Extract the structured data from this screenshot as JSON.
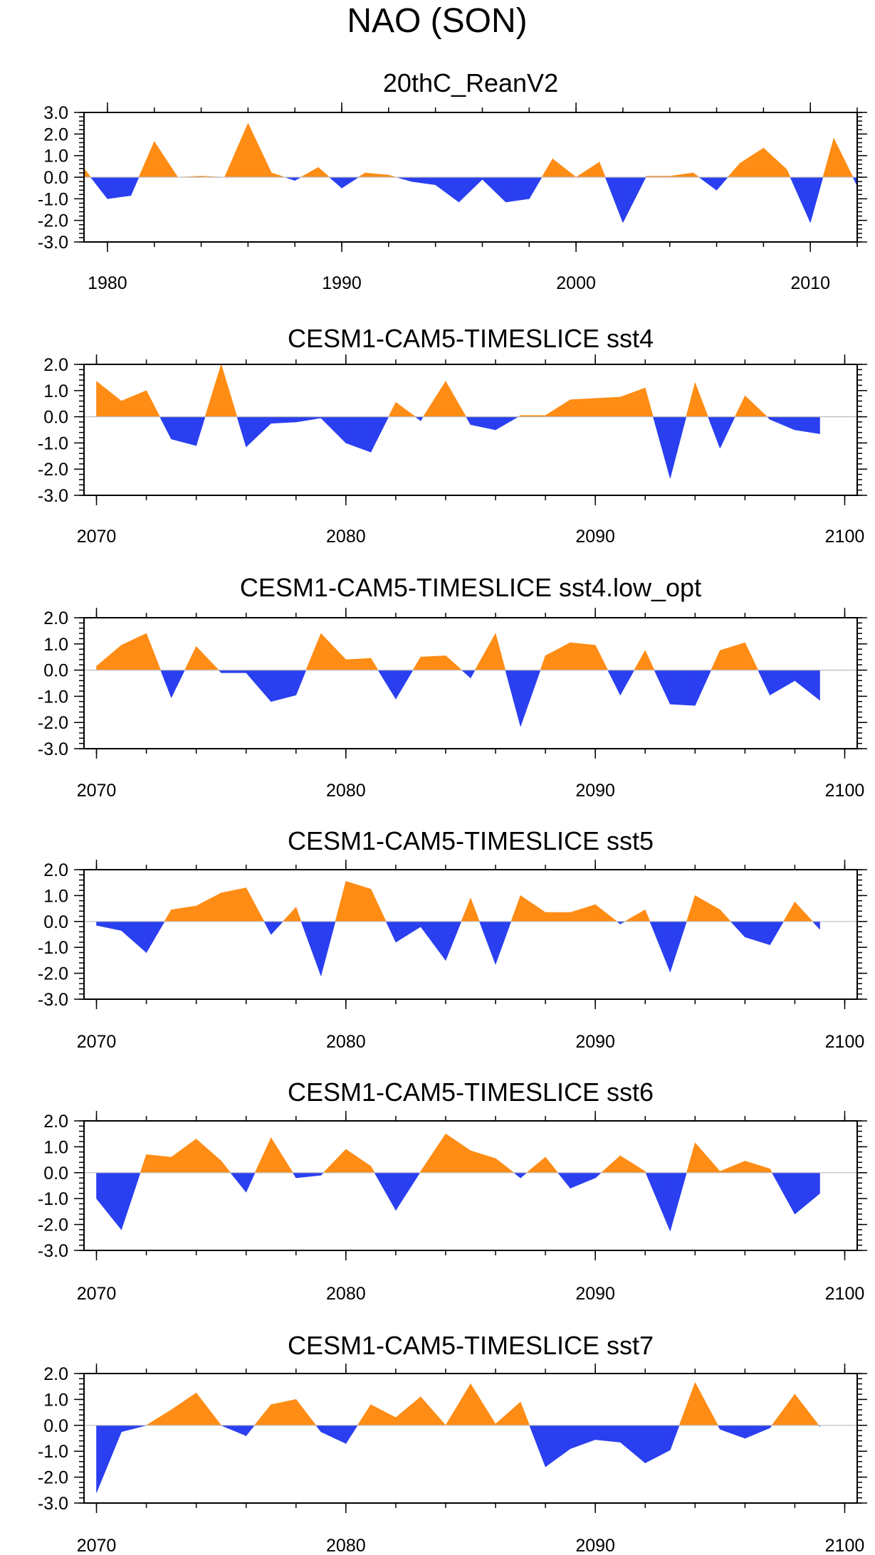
{
  "figure": {
    "title": "NAO (SON)"
  },
  "colors": {
    "positive": "#ff8c14",
    "negative": "#2a3ff0",
    "zero_line": "#bbbbbb"
  },
  "chart_data": [
    {
      "type": "area",
      "title": "20thC_ReanV2",
      "xlim": [
        1979,
        2012
      ],
      "ylim": [
        -3.0,
        3.0
      ],
      "yticks": [
        "3.0",
        "2.0",
        "1.0",
        "0.0",
        "-1.0",
        "-2.0",
        "-3.0"
      ],
      "xticks": [
        "1980",
        "1990",
        "2000",
        "2010"
      ],
      "x": [
        1979,
        1980,
        1981,
        1982,
        1983,
        1984,
        1985,
        1986,
        1987,
        1988,
        1989,
        1990,
        1991,
        1992,
        1993,
        1994,
        1995,
        1996,
        1997,
        1998,
        1999,
        2000,
        2001,
        2002,
        2003,
        2004,
        2005,
        2006,
        2007,
        2008,
        2009,
        2010,
        2011,
        2012
      ],
      "values": [
        0.4,
        -1.0,
        -0.85,
        1.65,
        0.0,
        0.05,
        0.0,
        2.5,
        0.2,
        -0.15,
        0.45,
        -0.5,
        0.2,
        0.1,
        -0.2,
        -0.35,
        -1.15,
        -0.1,
        -1.15,
        -1.0,
        0.85,
        0.0,
        0.7,
        -2.1,
        0.05,
        0.05,
        0.2,
        -0.6,
        0.65,
        1.35,
        0.35,
        -2.1,
        1.8,
        -0.4
      ]
    },
    {
      "type": "area",
      "title": "CESM1-CAM5-TIMESLICE sst4",
      "xlim": [
        2069.5,
        2100.5
      ],
      "ylim": [
        -3.0,
        2.0
      ],
      "yticks": [
        "2.0",
        "1.0",
        "0.0",
        "-1.0",
        "-2.0",
        "-3.0"
      ],
      "xticks": [
        "2070",
        "2080",
        "2090",
        "2100"
      ],
      "x": [
        2070,
        2071,
        2072,
        2073,
        2074,
        2075,
        2076,
        2077,
        2078,
        2079,
        2080,
        2081,
        2082,
        2083,
        2084,
        2085,
        2086,
        2087,
        2088,
        2089,
        2090,
        2091,
        2092,
        2093,
        2094,
        2095,
        2096,
        2097,
        2098,
        2099
      ],
      "values": [
        1.35,
        0.6,
        1.0,
        -0.85,
        -1.1,
        2.0,
        -1.15,
        -0.25,
        -0.2,
        -0.05,
        -1.0,
        -1.35,
        0.55,
        -0.15,
        1.35,
        -0.3,
        -0.5,
        0.05,
        0.05,
        0.65,
        0.7,
        0.75,
        1.1,
        -2.35,
        1.3,
        -1.2,
        0.8,
        -0.1,
        -0.5,
        -0.65
      ]
    },
    {
      "type": "area",
      "title": "CESM1-CAM5-TIMESLICE sst4.low_opt",
      "xlim": [
        2069.5,
        2100.5
      ],
      "ylim": [
        -3.0,
        2.0
      ],
      "yticks": [
        "2.0",
        "1.0",
        "0.0",
        "-1.0",
        "-2.0",
        "-3.0"
      ],
      "xticks": [
        "2070",
        "2080",
        "2090",
        "2100"
      ],
      "x": [
        2070,
        2071,
        2072,
        2073,
        2074,
        2075,
        2076,
        2077,
        2078,
        2079,
        2080,
        2081,
        2082,
        2083,
        2084,
        2085,
        2086,
        2087,
        2088,
        2089,
        2090,
        2091,
        2092,
        2093,
        2094,
        2095,
        2096,
        2097,
        2098,
        2099
      ],
      "values": [
        0.15,
        0.95,
        1.4,
        -1.05,
        0.9,
        -0.1,
        -0.1,
        -1.2,
        -0.95,
        1.4,
        0.4,
        0.45,
        -1.1,
        0.5,
        0.55,
        -0.3,
        1.4,
        -2.15,
        0.55,
        1.05,
        0.95,
        -0.95,
        0.75,
        -1.3,
        -1.35,
        0.75,
        1.05,
        -0.95,
        -0.4,
        -1.15
      ]
    },
    {
      "type": "area",
      "title": "CESM1-CAM5-TIMESLICE sst5",
      "xlim": [
        2069.5,
        2100.5
      ],
      "ylim": [
        -3.0,
        2.0
      ],
      "yticks": [
        "2.0",
        "1.0",
        "0.0",
        "-1.0",
        "-2.0",
        "-3.0"
      ],
      "xticks": [
        "2070",
        "2080",
        "2090",
        "2100"
      ],
      "x": [
        2070,
        2071,
        2072,
        2073,
        2074,
        2075,
        2076,
        2077,
        2078,
        2079,
        2080,
        2081,
        2082,
        2083,
        2084,
        2085,
        2086,
        2087,
        2088,
        2089,
        2090,
        2091,
        2092,
        2093,
        2094,
        2095,
        2096,
        2097,
        2098,
        2099
      ],
      "values": [
        -0.15,
        -0.35,
        -1.2,
        0.45,
        0.6,
        1.1,
        1.3,
        -0.5,
        0.55,
        -2.1,
        1.55,
        1.25,
        -0.8,
        -0.2,
        -1.5,
        0.9,
        -1.65,
        1.0,
        0.35,
        0.35,
        0.65,
        -0.1,
        0.45,
        -1.95,
        1.0,
        0.45,
        -0.6,
        -0.9,
        0.75,
        -0.3
      ]
    },
    {
      "type": "area",
      "title": "CESM1-CAM5-TIMESLICE sst6",
      "xlim": [
        2069.5,
        2100.5
      ],
      "ylim": [
        -3.0,
        2.0
      ],
      "yticks": [
        "2.0",
        "1.0",
        "0.0",
        "-1.0",
        "-2.0",
        "-3.0"
      ],
      "xticks": [
        "2070",
        "2080",
        "2090",
        "2100"
      ],
      "x": [
        2070,
        2071,
        2072,
        2073,
        2074,
        2075,
        2076,
        2077,
        2078,
        2079,
        2080,
        2081,
        2082,
        2083,
        2084,
        2085,
        2086,
        2087,
        2088,
        2089,
        2090,
        2091,
        2092,
        2093,
        2094,
        2095,
        2096,
        2097,
        2098,
        2099
      ],
      "values": [
        -1.0,
        -2.2,
        0.7,
        0.6,
        1.3,
        0.45,
        -0.75,
        1.35,
        -0.2,
        -0.1,
        0.9,
        0.25,
        -1.45,
        0.05,
        1.5,
        0.85,
        0.55,
        -0.2,
        0.6,
        -0.6,
        -0.2,
        0.65,
        0.05,
        -2.25,
        1.15,
        0.05,
        0.45,
        0.15,
        -1.6,
        -0.8
      ]
    },
    {
      "type": "area",
      "title": "CESM1-CAM5-TIMESLICE sst7",
      "xlim": [
        2069.5,
        2100.5
      ],
      "ylim": [
        -3.0,
        2.0
      ],
      "yticks": [
        "2.0",
        "1.0",
        "0.0",
        "-1.0",
        "-2.0",
        "-3.0"
      ],
      "xticks": [
        "2070",
        "2080",
        "2090",
        "2100"
      ],
      "x": [
        2070,
        2071,
        2072,
        2073,
        2074,
        2075,
        2076,
        2077,
        2078,
        2079,
        2080,
        2081,
        2082,
        2083,
        2084,
        2085,
        2086,
        2087,
        2088,
        2089,
        2090,
        2091,
        2092,
        2093,
        2094,
        2095,
        2096,
        2097,
        2098,
        2099
      ],
      "values": [
        -2.6,
        -0.25,
        0.0,
        0.6,
        1.25,
        0.0,
        -0.4,
        0.8,
        1.0,
        -0.25,
        -0.7,
        0.8,
        0.3,
        1.1,
        0.0,
        1.6,
        0.05,
        0.9,
        -1.6,
        -0.9,
        -0.55,
        -0.65,
        -1.45,
        -0.95,
        1.65,
        -0.15,
        -0.5,
        -0.1,
        1.2,
        -0.05
      ]
    }
  ]
}
